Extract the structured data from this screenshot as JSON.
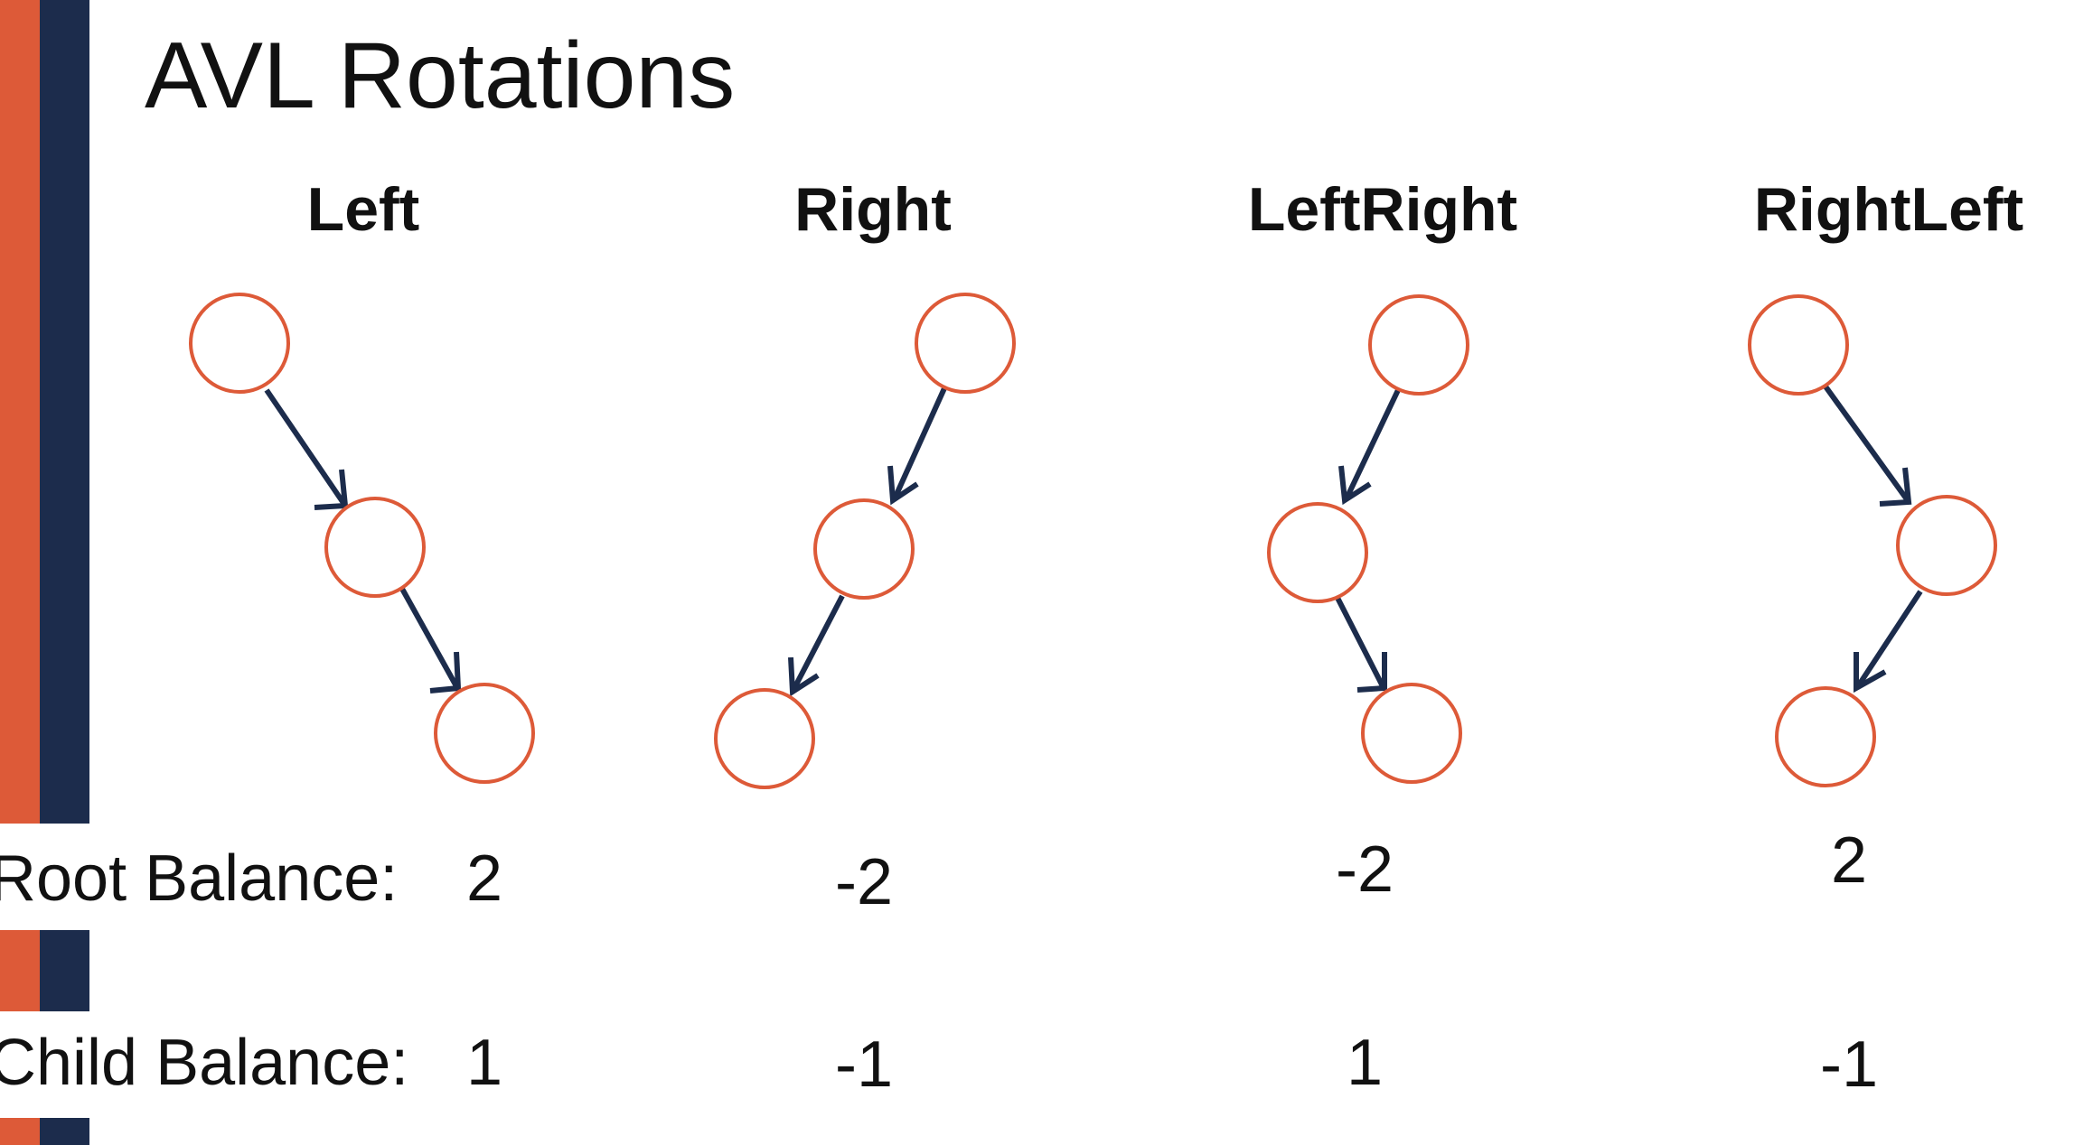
{
  "title": "AVL Rotations",
  "rows": {
    "root_label": "Root Balance:",
    "child_label": "Child Balance:"
  },
  "columns": [
    {
      "heading": "Left",
      "root_balance": "2",
      "child_balance": "1"
    },
    {
      "heading": "Right",
      "root_balance": "-2",
      "child_balance": "-1"
    },
    {
      "heading": "LeftRight",
      "root_balance": "-2",
      "child_balance": "1"
    },
    {
      "heading": "RightLeft",
      "root_balance": "2",
      "child_balance": "-1"
    }
  ],
  "colors": {
    "node_stroke": "#dd5a38",
    "edge": "#1c2c4c",
    "stripe_orange": "#dd5a38",
    "stripe_navy": "#1c2c4c"
  }
}
